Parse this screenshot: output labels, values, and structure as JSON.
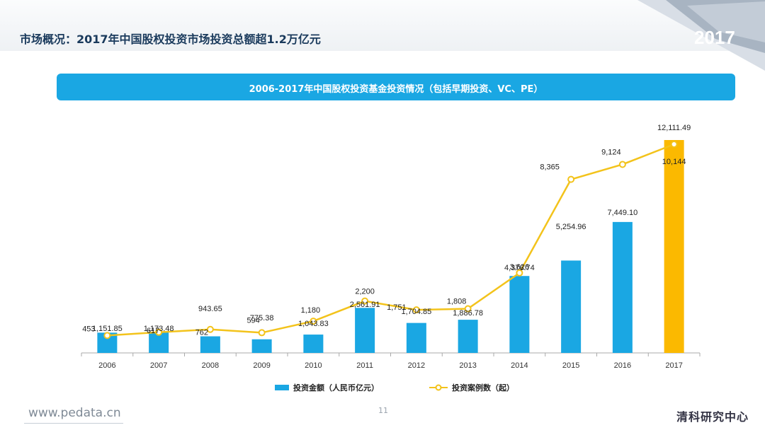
{
  "slide": {
    "title": "市场概况：2017年中国股权投资市场投资总额超1.2万亿元",
    "year_badge": "2017",
    "page_number": "11",
    "footer_url": "www.pedata.cn",
    "brand": "清科研究中心"
  },
  "colors": {
    "bar": "#1aa7e3",
    "bar_highlight": "#fbb900",
    "line": "#f3c31b",
    "axis": "#a9a9a9",
    "banner": "#1aa7e3"
  },
  "chart_data": {
    "type": "bar",
    "title": "2006-2017年中国股权投资基金投资情况（包括早期投资、VC、PE）",
    "categories": [
      "2006",
      "2007",
      "2008",
      "2009",
      "2010",
      "2011",
      "2012",
      "2013",
      "2014",
      "2015",
      "2016",
      "2017"
    ],
    "series": [
      {
        "name": "投资金额（人民币亿元）",
        "type": "bar",
        "values": [
          1151.85,
          1173.48,
          943.65,
          775.38,
          1043.83,
          2561.91,
          1704.85,
          1886.78,
          4376.74,
          5254.96,
          7449.1,
          12111.49
        ],
        "labels": [
          "1,151.85",
          "1,173.48",
          "943.65",
          "775.38",
          "1,043.83",
          "2,561.91",
          "1,704.85",
          "1,886.78",
          "4,376.74",
          "5,254.96",
          "7,449.10",
          "12,111.49"
        ],
        "highlight_index": 11
      },
      {
        "name": "投资案例数（起）",
        "type": "line",
        "values": [
          453,
          617,
          762,
          594,
          1180,
          2200,
          1751,
          1808,
          3626,
          8365,
          9124,
          10144
        ],
        "labels": [
          "453",
          "617",
          "762",
          "594",
          "1,180",
          "2,200",
          "1,751",
          "1,808",
          "3,626",
          "8,365",
          "9,124",
          "10,144"
        ]
      }
    ],
    "xlabel": "",
    "ylabel": "",
    "legend": "bottom-center",
    "grid": false
  }
}
